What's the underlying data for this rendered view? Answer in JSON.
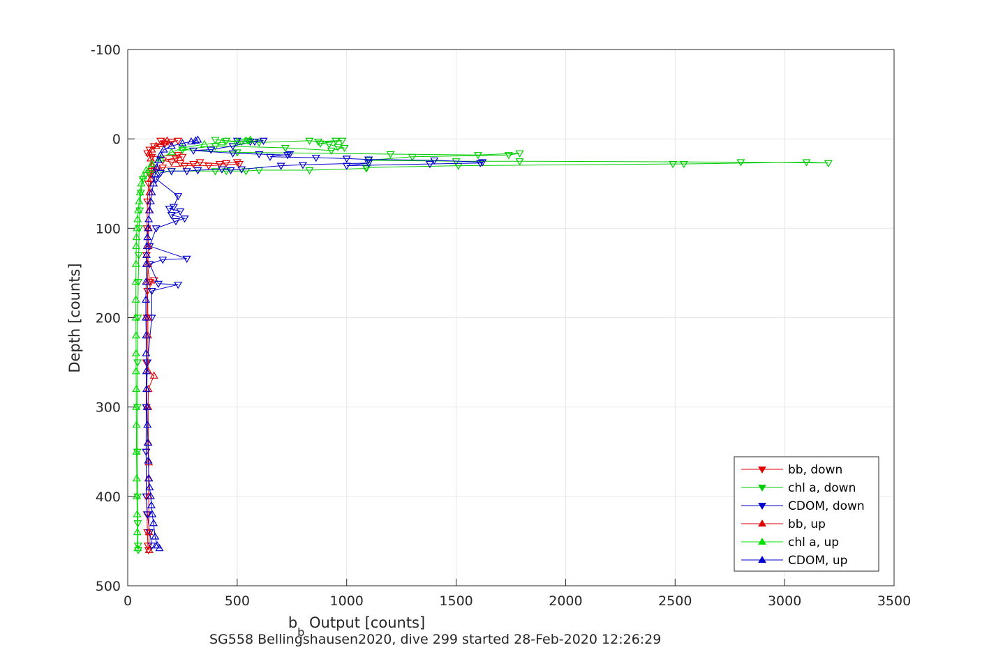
{
  "chart_data": {
    "type": "line",
    "xlabel_main": "b",
    "xlabel_sub": "b",
    "xlabel_rest": " Output [counts]",
    "ylabel": "Depth [counts]",
    "xlim": [
      0,
      3500
    ],
    "ylim": [
      -100,
      500
    ],
    "y_reversed": true,
    "grid": true,
    "legend_placement": "bottom-right",
    "x_ticks": [
      0,
      500,
      1000,
      1500,
      2000,
      2500,
      3000,
      3500
    ],
    "y_ticks": [
      -100,
      0,
      100,
      200,
      300,
      400,
      500
    ],
    "series": [
      {
        "name": "bb, down",
        "color": "#e00000",
        "marker": "triangle-down",
        "points": [
          [
            150,
            2
          ],
          [
            200,
            3
          ],
          [
            230,
            2
          ],
          [
            170,
            5
          ],
          [
            120,
            8
          ],
          [
            100,
            12
          ],
          [
            90,
            16
          ],
          [
            110,
            20
          ],
          [
            230,
            18
          ],
          [
            220,
            22
          ],
          [
            250,
            20
          ],
          [
            160,
            24
          ],
          [
            200,
            26
          ],
          [
            240,
            27
          ],
          [
            300,
            28
          ],
          [
            330,
            26
          ],
          [
            420,
            28
          ],
          [
            450,
            27
          ],
          [
            500,
            26
          ],
          [
            510,
            28
          ],
          [
            370,
            30
          ],
          [
            260,
            30
          ],
          [
            160,
            32
          ],
          [
            130,
            34
          ],
          [
            110,
            36
          ],
          [
            100,
            40
          ],
          [
            95,
            50
          ],
          [
            90,
            70
          ],
          [
            88,
            100
          ],
          [
            86,
            130
          ],
          [
            100,
            160
          ],
          [
            120,
            158
          ],
          [
            90,
            170
          ],
          [
            88,
            200
          ],
          [
            85,
            250
          ],
          [
            84,
            300
          ],
          [
            84,
            350
          ],
          [
            85,
            400
          ],
          [
            88,
            420
          ],
          [
            90,
            440
          ],
          [
            92,
            455
          ],
          [
            95,
            460
          ]
        ]
      },
      {
        "name": "chl a, down",
        "color": "#00cc00",
        "marker": "triangle-down",
        "points": [
          [
            400,
            1
          ],
          [
            450,
            2
          ],
          [
            520,
            3
          ],
          [
            550,
            2
          ],
          [
            600,
            4
          ],
          [
            830,
            2
          ],
          [
            870,
            3
          ],
          [
            950,
            2
          ],
          [
            980,
            2
          ],
          [
            880,
            5
          ],
          [
            920,
            6
          ],
          [
            960,
            9
          ],
          [
            990,
            10
          ],
          [
            930,
            13
          ],
          [
            720,
            10
          ],
          [
            400,
            8
          ],
          [
            250,
            12
          ],
          [
            500,
            15
          ],
          [
            1200,
            17
          ],
          [
            1600,
            18
          ],
          [
            1790,
            16
          ],
          [
            1740,
            18
          ],
          [
            1300,
            20
          ],
          [
            1100,
            24
          ],
          [
            1500,
            25
          ],
          [
            1790,
            25
          ],
          [
            2800,
            26
          ],
          [
            3200,
            27
          ],
          [
            3100,
            26
          ],
          [
            2540,
            28
          ],
          [
            2490,
            28
          ],
          [
            1510,
            30
          ],
          [
            1090,
            32
          ],
          [
            1090,
            33
          ],
          [
            830,
            35
          ],
          [
            600,
            35
          ],
          [
            540,
            36
          ],
          [
            450,
            36
          ],
          [
            400,
            36
          ],
          [
            200,
            36
          ],
          [
            100,
            38
          ],
          [
            70,
            45
          ],
          [
            60,
            60
          ],
          [
            55,
            80
          ],
          [
            52,
            100
          ],
          [
            50,
            130
          ],
          [
            48,
            160
          ],
          [
            46,
            200
          ],
          [
            45,
            250
          ],
          [
            44,
            300
          ],
          [
            44,
            350
          ],
          [
            45,
            400
          ],
          [
            46,
            430
          ],
          [
            47,
            455
          ],
          [
            48,
            460
          ]
        ]
      },
      {
        "name": "CDOM, down",
        "color": "#0000cc",
        "marker": "triangle-down",
        "points": [
          [
            500,
            2
          ],
          [
            560,
            3
          ],
          [
            620,
            2
          ],
          [
            580,
            3
          ],
          [
            480,
            8
          ],
          [
            380,
            12
          ],
          [
            300,
            13
          ],
          [
            480,
            16
          ],
          [
            600,
            17
          ],
          [
            730,
            18
          ],
          [
            740,
            17
          ],
          [
            650,
            20
          ],
          [
            860,
            21
          ],
          [
            1000,
            22
          ],
          [
            1100,
            23
          ],
          [
            1400,
            24
          ],
          [
            1620,
            26
          ],
          [
            1610,
            27
          ],
          [
            1380,
            28
          ],
          [
            1000,
            30
          ],
          [
            1100,
            27
          ],
          [
            800,
            29
          ],
          [
            700,
            30
          ],
          [
            520,
            34
          ],
          [
            470,
            35
          ],
          [
            430,
            34
          ],
          [
            320,
            35
          ],
          [
            270,
            36
          ],
          [
            200,
            36
          ],
          [
            150,
            38
          ],
          [
            130,
            45
          ],
          [
            230,
            64
          ],
          [
            210,
            76
          ],
          [
            190,
            78
          ],
          [
            240,
            81
          ],
          [
            200,
            85
          ],
          [
            260,
            89
          ],
          [
            220,
            92
          ],
          [
            130,
            100
          ],
          [
            100,
            120
          ],
          [
            270,
            134
          ],
          [
            160,
            135
          ],
          [
            100,
            140
          ],
          [
            140,
            162
          ],
          [
            230,
            163
          ],
          [
            110,
            170
          ],
          [
            110,
            200
          ],
          [
            90,
            250
          ],
          [
            85,
            300
          ],
          [
            84,
            350
          ],
          [
            85,
            400
          ],
          [
            90,
            420
          ],
          [
            100,
            440
          ],
          [
            110,
            455
          ]
        ]
      },
      {
        "name": "bb, up",
        "color": "#e00000",
        "marker": "triangle-up",
        "points": [
          [
            98,
            460
          ],
          [
            97,
            440
          ],
          [
            96,
            400
          ],
          [
            95,
            380
          ],
          [
            96,
            362
          ],
          [
            94,
            340
          ],
          [
            93,
            300
          ],
          [
            94,
            280
          ],
          [
            120,
            265
          ],
          [
            93,
            260
          ],
          [
            92,
            220
          ],
          [
            92,
            200
          ],
          [
            91,
            160
          ],
          [
            92,
            140
          ],
          [
            94,
            120
          ],
          [
            95,
            100
          ],
          [
            98,
            80
          ],
          [
            100,
            60
          ],
          [
            105,
            45
          ],
          [
            110,
            30
          ],
          [
            105,
            22
          ],
          [
            100,
            16
          ],
          [
            110,
            12
          ],
          [
            130,
            8
          ],
          [
            150,
            6
          ],
          [
            170,
            4
          ],
          [
            180,
            2
          ]
        ]
      },
      {
        "name": "chl a, up",
        "color": "#00e000",
        "marker": "triangle-up",
        "points": [
          [
            45,
            458
          ],
          [
            44,
            440
          ],
          [
            43,
            420
          ],
          [
            42,
            400
          ],
          [
            41,
            380
          ],
          [
            40,
            350
          ],
          [
            40,
            320
          ],
          [
            39,
            300
          ],
          [
            39,
            280
          ],
          [
            38,
            260
          ],
          [
            38,
            240
          ],
          [
            38,
            220
          ],
          [
            37,
            200
          ],
          [
            37,
            180
          ],
          [
            37,
            160
          ],
          [
            38,
            140
          ],
          [
            39,
            120
          ],
          [
            40,
            110
          ],
          [
            42,
            100
          ],
          [
            45,
            90
          ],
          [
            48,
            80
          ],
          [
            52,
            70
          ],
          [
            56,
            60
          ],
          [
            62,
            50
          ],
          [
            70,
            42
          ],
          [
            85,
            35
          ],
          [
            110,
            28
          ],
          [
            150,
            22
          ],
          [
            200,
            15
          ],
          [
            250,
            10
          ],
          [
            350,
            6
          ],
          [
            430,
            4
          ],
          [
            500,
            3
          ],
          [
            540,
            2
          ],
          [
            560,
            1
          ]
        ]
      },
      {
        "name": "CDOM, up",
        "color": "#0000cc",
        "marker": "triangle-up",
        "points": [
          [
            145,
            458
          ],
          [
            135,
            455
          ],
          [
            125,
            445
          ],
          [
            118,
            430
          ],
          [
            112,
            420
          ],
          [
            108,
            410
          ],
          [
            105,
            400
          ],
          [
            100,
            390
          ],
          [
            97,
            380
          ],
          [
            94,
            360
          ],
          [
            92,
            340
          ],
          [
            90,
            320
          ],
          [
            88,
            300
          ],
          [
            86,
            280
          ],
          [
            85,
            260
          ],
          [
            84,
            240
          ],
          [
            84,
            220
          ],
          [
            83,
            200
          ],
          [
            83,
            180
          ],
          [
            84,
            160
          ],
          [
            85,
            140
          ],
          [
            86,
            130
          ],
          [
            88,
            120
          ],
          [
            90,
            110
          ],
          [
            93,
            100
          ],
          [
            96,
            90
          ],
          [
            100,
            80
          ],
          [
            105,
            70
          ],
          [
            110,
            60
          ],
          [
            118,
            50
          ],
          [
            125,
            40
          ],
          [
            132,
            32
          ],
          [
            140,
            24
          ],
          [
            150,
            18
          ],
          [
            165,
            12
          ],
          [
            200,
            8
          ],
          [
            250,
            5
          ],
          [
            290,
            3
          ],
          [
            310,
            2
          ],
          [
            320,
            1
          ]
        ]
      }
    ]
  },
  "caption": "SG558 Bellingshausen2020, dive 299 started 28-Feb-2020 12:26:29"
}
